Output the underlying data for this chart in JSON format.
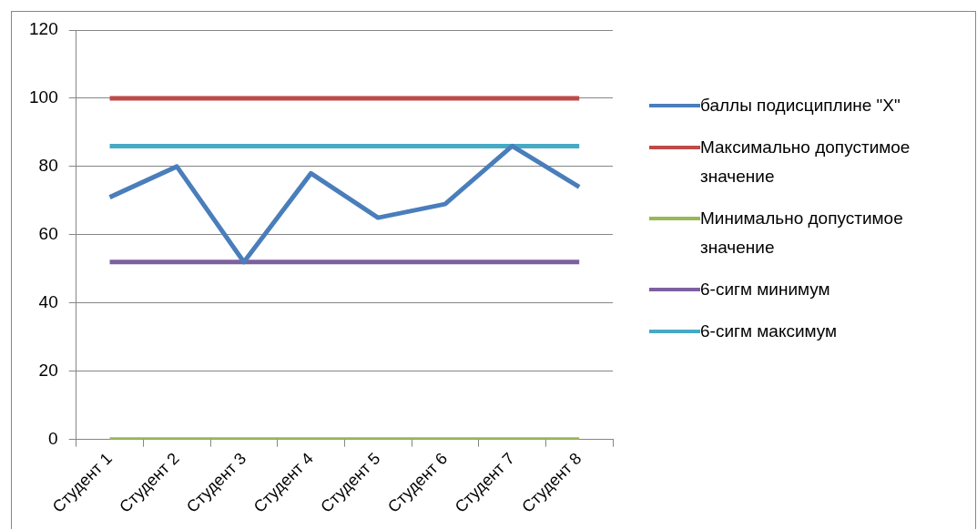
{
  "chart_data": {
    "type": "line",
    "categories": [
      "Студент 1",
      "Студент 2",
      "Студент 3",
      "Студент 4",
      "Студент 5",
      "Студент 6",
      "Студент 7",
      "Студент 8"
    ],
    "series": [
      {
        "name": "баллы подисциплине \"X\"",
        "color": "#4a7ebb",
        "values": [
          71,
          80,
          52,
          78,
          65,
          69,
          86,
          74
        ]
      },
      {
        "name": "Максимально допустимое значение",
        "color": "#be4b48",
        "values": [
          100,
          100,
          100,
          100,
          100,
          100,
          100,
          100
        ]
      },
      {
        "name": "Минимально допустимое значение",
        "color": "#98b954",
        "values": [
          0,
          0,
          0,
          0,
          0,
          0,
          0,
          0
        ]
      },
      {
        "name": "6-сигм минимум",
        "color": "#7d60a0",
        "values": [
          52,
          52,
          52,
          52,
          52,
          52,
          52,
          52
        ]
      },
      {
        "name": "6-сигм максимум",
        "color": "#46aac5",
        "values": [
          86,
          86,
          86,
          86,
          86,
          86,
          86,
          86
        ]
      }
    ],
    "ylim": [
      0,
      120
    ],
    "yticks": [
      0,
      20,
      40,
      60,
      80,
      100,
      120
    ],
    "grid": "y",
    "legend": "right",
    "marker": "none",
    "line_style": "solid"
  }
}
